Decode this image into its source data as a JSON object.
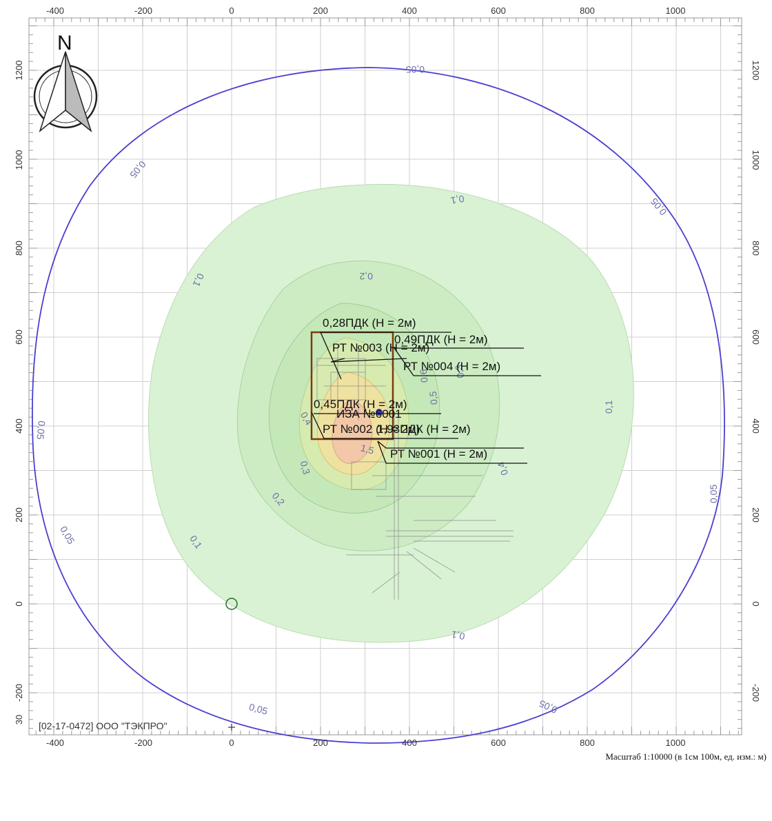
{
  "north_label": "N",
  "axes": {
    "x_ticks": [
      "-400",
      "-200",
      "0",
      "200",
      "400",
      "600",
      "800",
      "1000"
    ],
    "y_ticks": [
      "1200",
      "1000",
      "800",
      "600",
      "400",
      "200",
      "0",
      "-200"
    ]
  },
  "contours": {
    "c005": "0,05",
    "c01": "0,1",
    "c02": "0,2",
    "c03": "0,3",
    "c04": "0,4",
    "c05": "0,5",
    "c06": "0,6",
    "c15": "1,5"
  },
  "annotations": {
    "pdk028": "0,28ПДК (Н = 2м)",
    "pdk049": "0,49ПДК (Н = 2м)",
    "rt003": "РТ №003 (Н = 2м)",
    "rt004": "РТ №004 (Н = 2м)",
    "pdk045": "0,45ПДК (Н = 2м)",
    "iza6001": "ИЗА №6001",
    "rt002": "РТ №002 (Н = 2м)",
    "pdk193": "1,93ПДК (Н = 2м)",
    "rt001": "РТ №001 (Н = 2м)"
  },
  "footer": {
    "company": "[02-17-0472] ООО \"ТЭКПРО\"",
    "bottom_left_tick": "30",
    "scale": "Масштаб 1:10000 (в 1см 100м, ед. изм.: м)"
  },
  "colors": {
    "outer_isoline": "#4a3fd0",
    "plume_light": "#d5f2d0",
    "plume_core": "#f2c8a8",
    "site_border": "#7a3a10",
    "grid": "#c8c8c8"
  }
}
